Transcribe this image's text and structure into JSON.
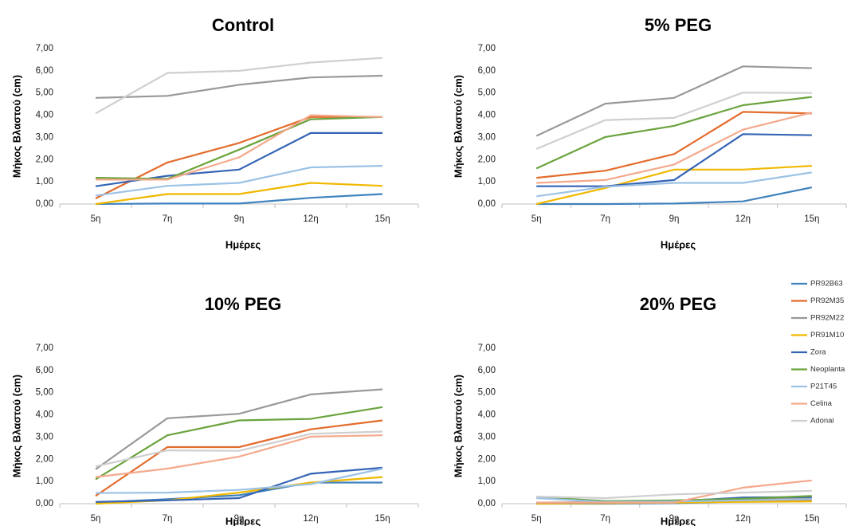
{
  "chart_data": [
    {
      "type": "line",
      "title": "Control",
      "xlabel": "Ημέρες",
      "ylabel": "Μήκος Βλαστού (cm)",
      "categories": [
        "5η",
        "7η",
        "9η",
        "12η",
        "15η"
      ],
      "ylim": [
        0,
        7
      ],
      "yticks": [
        "0,00",
        "1,00",
        "2,00",
        "3,00",
        "4,00",
        "5,00",
        "6,00",
        "7,00"
      ],
      "grid": false,
      "series": [
        {
          "name": "PR92B63",
          "values": [
            0.0,
            0.02,
            0.02,
            0.28,
            0.45
          ]
        },
        {
          "name": "PR92M35",
          "values": [
            0.25,
            1.87,
            2.75,
            3.92,
            3.92
          ]
        },
        {
          "name": "PR92M22",
          "values": [
            4.78,
            4.87,
            5.37,
            5.7,
            5.78
          ]
        },
        {
          "name": "PR91M10",
          "values": [
            0.0,
            0.45,
            0.45,
            0.95,
            0.82
          ]
        },
        {
          "name": "Zora",
          "values": [
            0.8,
            1.27,
            1.55,
            3.2,
            3.2
          ]
        },
        {
          "name": "Neoplanta",
          "values": [
            1.18,
            1.13,
            2.45,
            3.82,
            3.92
          ]
        },
        {
          "name": "P21T45",
          "values": [
            0.38,
            0.82,
            0.95,
            1.65,
            1.72
          ]
        },
        {
          "name": "Celina",
          "values": [
            1.1,
            1.1,
            2.1,
            4.0,
            3.92
          ]
        },
        {
          "name": "Adonai",
          "values": [
            4.08,
            5.9,
            6.0,
            6.37,
            6.58
          ]
        }
      ]
    },
    {
      "type": "line",
      "title": "5% PEG",
      "xlabel": "Ημέρες",
      "ylabel": "Μήκος Βλαστού (cm)",
      "categories": [
        "5η",
        "7η",
        "9η",
        "12η",
        "15η"
      ],
      "ylim": [
        0,
        7
      ],
      "yticks": [
        "0,00",
        "1,00",
        "2,00",
        "3,00",
        "4,00",
        "5,00",
        "6,00",
        "7,00"
      ],
      "grid": false,
      "series": [
        {
          "name": "PR92B63",
          "values": [
            0.0,
            0.0,
            0.02,
            0.12,
            0.75
          ]
        },
        {
          "name": "PR92M35",
          "values": [
            1.18,
            1.5,
            2.25,
            4.15,
            4.08
          ]
        },
        {
          "name": "PR92M22",
          "values": [
            3.07,
            4.52,
            4.78,
            6.2,
            6.12
          ]
        },
        {
          "name": "PR91M10",
          "values": [
            0.0,
            0.72,
            1.55,
            1.55,
            1.72
          ]
        },
        {
          "name": "Zora",
          "values": [
            0.8,
            0.8,
            1.08,
            3.15,
            3.1
          ]
        },
        {
          "name": "Neoplanta",
          "values": [
            1.6,
            3.02,
            3.52,
            4.45,
            4.82
          ]
        },
        {
          "name": "P21T45",
          "values": [
            0.35,
            0.78,
            0.95,
            0.95,
            1.42
          ]
        },
        {
          "name": "Celina",
          "values": [
            0.95,
            1.08,
            1.78,
            3.35,
            4.12
          ]
        },
        {
          "name": "Adonai",
          "values": [
            2.48,
            3.78,
            3.88,
            5.02,
            5.0
          ]
        }
      ]
    },
    {
      "type": "line",
      "title": "10% PEG",
      "xlabel": "Ημέρες",
      "ylabel": "Μήκος Βλαστού (cm)",
      "categories": [
        "5η",
        "7η",
        "9η",
        "12η",
        "15η"
      ],
      "ylim": [
        0,
        7
      ],
      "yticks": [
        "0,00",
        "1,00",
        "2,00",
        "3,00",
        "4,00",
        "5,00",
        "6,00",
        "7,00"
      ],
      "grid": false,
      "series": [
        {
          "name": "PR92B63",
          "values": [
            0.05,
            0.2,
            0.38,
            0.95,
            0.95
          ]
        },
        {
          "name": "PR92M35",
          "values": [
            0.35,
            2.55,
            2.55,
            3.35,
            3.75
          ]
        },
        {
          "name": "PR92M22",
          "values": [
            1.55,
            3.85,
            4.05,
            4.92,
            5.15
          ]
        },
        {
          "name": "PR91M10",
          "values": [
            0.0,
            0.15,
            0.5,
            0.95,
            1.2
          ]
        },
        {
          "name": "Zora",
          "values": [
            0.08,
            0.15,
            0.25,
            1.35,
            1.62
          ]
        },
        {
          "name": "Neoplanta",
          "values": [
            1.1,
            3.08,
            3.75,
            3.82,
            4.35
          ]
        },
        {
          "name": "P21T45",
          "values": [
            0.48,
            0.5,
            0.62,
            0.88,
            1.58
          ]
        },
        {
          "name": "Celina",
          "values": [
            1.2,
            1.58,
            2.12,
            3.02,
            3.08
          ]
        },
        {
          "name": "Adonai",
          "values": [
            1.68,
            2.4,
            2.38,
            3.15,
            3.25
          ]
        }
      ]
    },
    {
      "type": "line",
      "title": "20% PEG",
      "xlabel": "Ημέρες",
      "ylabel": "Μήκος Βλαστού (cm)",
      "categories": [
        "5η",
        "7η",
        "9η",
        "12η",
        "15η"
      ],
      "ylim": [
        0,
        7
      ],
      "yticks": [
        "0,00",
        "1,00",
        "2,00",
        "3,00",
        "4,00",
        "5,00",
        "6,00",
        "7,00"
      ],
      "grid": false,
      "legend_position": "right",
      "series": [
        {
          "name": "PR92B63",
          "values": [
            0.0,
            0.0,
            0.02,
            0.1,
            0.15
          ]
        },
        {
          "name": "PR92M35",
          "values": [
            0.05,
            0.05,
            0.08,
            0.12,
            0.12
          ]
        },
        {
          "name": "PR92M22",
          "values": [
            0.05,
            0.08,
            0.12,
            0.2,
            0.25
          ]
        },
        {
          "name": "PR91M10",
          "values": [
            0.0,
            0.02,
            0.05,
            0.08,
            0.1
          ]
        },
        {
          "name": "Zora",
          "values": [
            0.05,
            0.05,
            0.1,
            0.28,
            0.3
          ]
        },
        {
          "name": "Neoplanta",
          "values": [
            0.3,
            0.12,
            0.15,
            0.22,
            0.35
          ]
        },
        {
          "name": "P21T45",
          "values": [
            0.25,
            0.08,
            0.1,
            0.15,
            0.2
          ]
        },
        {
          "name": "Celina",
          "values": [
            0.05,
            0.05,
            0.05,
            0.72,
            1.05
          ]
        },
        {
          "name": "Adonai",
          "values": [
            0.32,
            0.25,
            0.42,
            0.5,
            0.58
          ]
        }
      ]
    }
  ],
  "colors": {
    "PR92B63": "#3f82bd",
    "PR92M35": "#e36c2c",
    "PR92M22": "#999999",
    "PR91M10": "#f0b800",
    "Zora": "#3564b5",
    "Neoplanta": "#6aa33d",
    "P21T45": "#9cc2e6",
    "Celina": "#f4a98c",
    "Adonai": "#cfcfcf",
    "axis": "#bfbfbf"
  },
  "legend": {
    "items": [
      "PR92B63",
      "PR92M35",
      "PR92M22",
      "PR91M10",
      "Zora",
      "Neoplanta",
      "P21T45",
      "Celina",
      "Adonai"
    ]
  }
}
